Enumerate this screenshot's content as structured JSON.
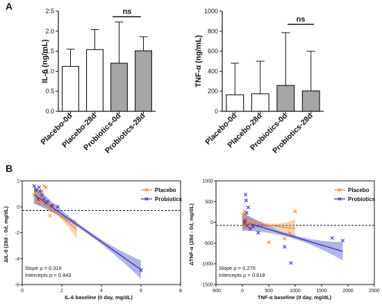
{
  "panels": {
    "a": "A",
    "b": "B"
  },
  "chart_data": [
    {
      "id": "il6_bar",
      "type": "bar",
      "categories": [
        "Placebo-0d",
        "Placebo-28d",
        "Probiotics-0d",
        "Probiotics-28d"
      ],
      "values": [
        1.12,
        1.54,
        1.2,
        1.51
      ],
      "errors": [
        0.43,
        0.5,
        1.03,
        0.35
      ],
      "fill": [
        "#ffffff",
        "#ffffff",
        "#a6a6a6",
        "#a6a6a6"
      ],
      "ylabel": "IL-6 (ng/mL)",
      "ylim": [
        0,
        2.5
      ],
      "yticks": [
        "0.0",
        "0.5",
        "1.0",
        "1.5",
        "2.0",
        "2.5"
      ],
      "annotation": "ns"
    },
    {
      "id": "tnf_bar",
      "type": "bar",
      "categories": [
        "Placebo-0d",
        "Placebo-28d",
        "Probiotics-0d",
        "Probiotics-28d"
      ],
      "values": [
        165,
        175,
        258,
        203
      ],
      "errors": [
        315,
        325,
        527,
        397
      ],
      "fill": [
        "#ffffff",
        "#ffffff",
        "#a6a6a6",
        "#a6a6a6"
      ],
      "ylabel": "TNF-α  (ng/mL)",
      "ylim": [
        0,
        1000
      ],
      "yticks": [
        "0",
        "200",
        "400",
        "600",
        "800",
        "1000"
      ],
      "annotation": "ns"
    },
    {
      "id": "il6_scatter",
      "type": "scatter",
      "xlabel": "IL-6 baseline (0 day, mg/dL)",
      "ylabel": "ΔIL-6 (28d - 0d, mg/dL)",
      "xlim": [
        0,
        8
      ],
      "ylim": [
        -6,
        2
      ],
      "xticks": [
        "0",
        "2",
        "4",
        "6",
        "8"
      ],
      "yticks": [
        "-6",
        "-4",
        "-2",
        "0",
        "2"
      ],
      "legend_position": "top-right",
      "series": [
        {
          "name": "Placebo",
          "color": "#f08a2c",
          "points": [
            [
              0.6,
              0.9
            ],
            [
              0.7,
              0.7
            ],
            [
              0.75,
              1.1
            ],
            [
              0.8,
              0.5
            ],
            [
              0.9,
              0.8
            ],
            [
              1.0,
              0.4
            ],
            [
              1.1,
              1.6
            ],
            [
              1.2,
              1.5
            ],
            [
              1.3,
              0.2
            ],
            [
              1.4,
              -0.7
            ],
            [
              1.5,
              -0.3
            ],
            [
              1.0,
              1.2
            ],
            [
              0.85,
              0.3
            ],
            [
              1.6,
              0.1
            ]
          ],
          "fit": {
            "x": [
              0.6,
              2.75
            ],
            "y": [
              0.95,
              -1.75
            ]
          }
        },
        {
          "name": "Probiotics",
          "color": "#3535c8",
          "points": [
            [
              0.6,
              1.6
            ],
            [
              0.7,
              1.3
            ],
            [
              0.8,
              0.6
            ],
            [
              0.85,
              1.5
            ],
            [
              0.9,
              1.2
            ],
            [
              1.0,
              0.9
            ],
            [
              1.1,
              0.6
            ],
            [
              1.2,
              0.3
            ],
            [
              1.3,
              0.4
            ],
            [
              1.5,
              0.1
            ],
            [
              1.8,
              0.0
            ],
            [
              6.0,
              -4.9
            ]
          ],
          "fit": {
            "x": [
              0.6,
              6.0
            ],
            "y": [
              0.95,
              -4.85
            ]
          }
        }
      ],
      "stats": {
        "slope": "Slope ρ = 0.316",
        "intercepts": "Intercepts ρ = 0.843"
      }
    },
    {
      "id": "tnf_scatter",
      "type": "scatter",
      "xlabel": "TNF-α baseline (0 day, mg/dL)",
      "ylabel": "ΔTNF-α (28d - 0d, mg/dL)",
      "xlim": [
        -500,
        2500
      ],
      "ylim": [
        -1500,
        1000
      ],
      "xticks": [
        "-500",
        "0",
        "500",
        "1000",
        "1500",
        "2000",
        "2500"
      ],
      "yticks": [
        "-1500",
        "-1000",
        "-500",
        "0",
        "500",
        "1000"
      ],
      "legend_position": "top-right",
      "series": [
        {
          "name": "Placebo",
          "color": "#f08a2c",
          "points": [
            [
              20,
              90
            ],
            [
              30,
              40
            ],
            [
              40,
              260
            ],
            [
              50,
              -10
            ],
            [
              60,
              180
            ],
            [
              100,
              -20
            ],
            [
              120,
              -90
            ],
            [
              150,
              -60
            ],
            [
              500,
              -480
            ],
            [
              800,
              -390
            ],
            [
              900,
              -270
            ],
            [
              1000,
              260
            ],
            [
              30,
              -40
            ],
            [
              60,
              20
            ]
          ],
          "fit": {
            "x": [
              0,
              1000
            ],
            "y": [
              10,
              -150
            ]
          }
        },
        {
          "name": "Probiotics",
          "color": "#3535c8",
          "points": [
            [
              50,
              40
            ],
            [
              60,
              670
            ],
            [
              70,
              530
            ],
            [
              80,
              230
            ],
            [
              90,
              -80
            ],
            [
              110,
              360
            ],
            [
              150,
              -160
            ],
            [
              200,
              -100
            ],
            [
              300,
              -250
            ],
            [
              800,
              -590
            ],
            [
              920,
              -980
            ],
            [
              1700,
              -380
            ],
            [
              1900,
              -440
            ],
            [
              40,
              -20
            ]
          ],
          "fit": {
            "x": [
              0,
              1900
            ],
            "y": [
              20,
              -700
            ]
          }
        }
      ],
      "stats": {
        "slope": "Slope ρ = 0.270",
        "intercepts": "Intercepts ρ = 0.618"
      }
    }
  ]
}
